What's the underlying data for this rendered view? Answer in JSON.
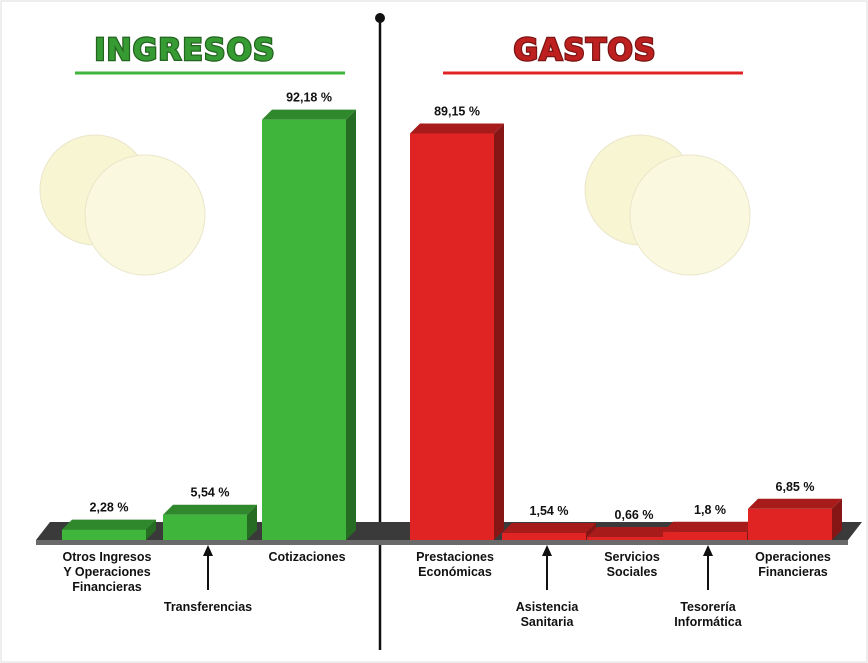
{
  "chart_data": [
    {
      "type": "bar",
      "title": "INGRESOS",
      "color": "#3fb63b",
      "categories": [
        "Otros Ingresos\nY Operaciones\nFinancieras",
        "Transferencias",
        "Cotizaciones"
      ],
      "values": [
        2.28,
        5.54,
        92.18
      ],
      "value_labels": [
        "2,28 %",
        "5,54 %",
        "92,18 %"
      ]
    },
    {
      "type": "bar",
      "title": "GASTOS",
      "color": "#e02424",
      "categories": [
        "Prestaciones\nEconómicas",
        "Asistencia\nSanitaria",
        "Servicios\nSociales",
        "Tesorería\nInformática",
        "Operaciones\nFinancieras"
      ],
      "values": [
        89.15,
        1.54,
        0.66,
        1.8,
        6.85
      ],
      "value_labels": [
        "89,15 %",
        "1,54 %",
        "0,66 %",
        "1,8 %",
        "6,85 %"
      ]
    }
  ]
}
